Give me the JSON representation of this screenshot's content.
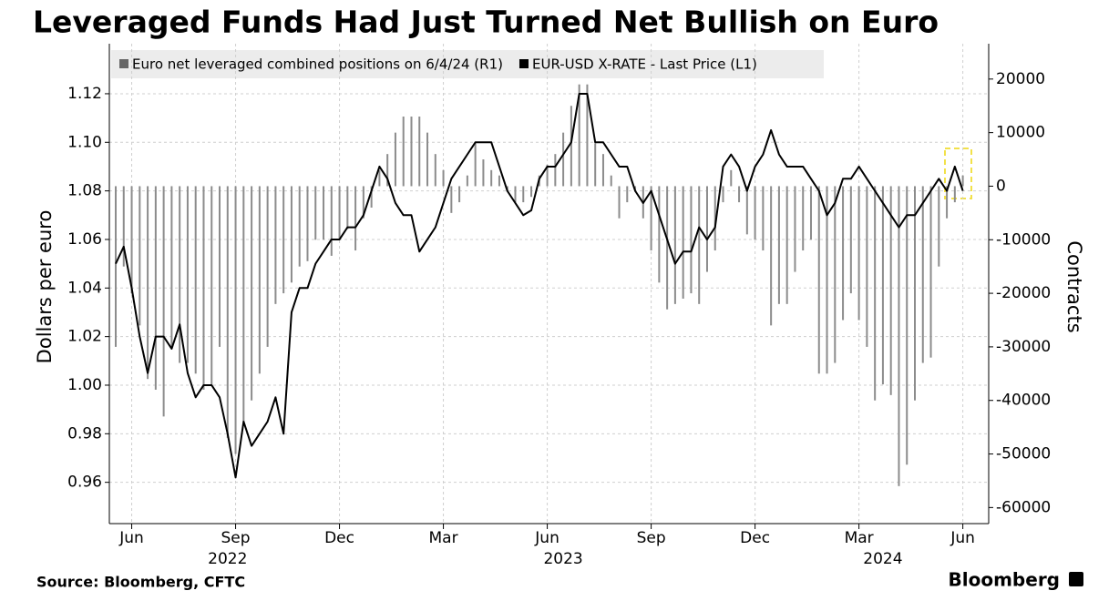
{
  "chart_data": {
    "type": "combo",
    "title": "Leveraged Funds Had Just Turned Net Bullish on Euro",
    "source": "Source: Bloomberg, CFTC",
    "logo": "Bloomberg",
    "ylabel": "Dollars per euro",
    "y2label": "Contracts",
    "categories": [
      null,
      null,
      "Jun",
      null,
      null,
      null,
      null,
      null,
      null,
      null,
      null,
      null,
      null,
      null,
      null,
      "Sep",
      null,
      null,
      null,
      null,
      null,
      null,
      null,
      null,
      null,
      null,
      null,
      null,
      "Dec",
      null,
      null,
      null,
      null,
      null,
      null,
      null,
      null,
      null,
      null,
      null,
      null,
      "Mar",
      null,
      null,
      null,
      null,
      null,
      null,
      null,
      null,
      null,
      null,
      null,
      null,
      "Jun",
      null,
      null,
      null,
      null,
      null,
      null,
      null,
      null,
      null,
      null,
      null,
      null,
      "Sep",
      null,
      null,
      null,
      null,
      null,
      null,
      null,
      null,
      null,
      null,
      null,
      null,
      "Dec",
      null,
      null,
      null,
      null,
      null,
      null,
      null,
      null,
      null,
      null,
      null,
      null,
      "Mar",
      null,
      null,
      null,
      null,
      null,
      null,
      null,
      null,
      null,
      null,
      null,
      null,
      "Jun"
    ],
    "year_ticks": [
      {
        "value": 14,
        "label": "2022"
      },
      {
        "value": 56,
        "label": "2023"
      },
      {
        "value": 96,
        "label": "2024"
      }
    ],
    "series": [
      {
        "name": "Euro net leveraged combined positions on 6/4/24 (R1)",
        "type": "bar",
        "axis": "y2",
        "color": "#8c8c8c",
        "values": [
          -30000,
          -15000,
          -20000,
          -26000,
          -36000,
          -38000,
          -43000,
          -30000,
          -33000,
          -33000,
          -35000,
          -38000,
          -37000,
          -30000,
          -47000,
          -50000,
          -44000,
          -40000,
          -35000,
          -30000,
          -22000,
          -20000,
          -18000,
          -15000,
          -14000,
          -10000,
          -10000,
          -13000,
          -10000,
          -8000,
          -12000,
          -6000,
          -4000,
          3000,
          6000,
          10000,
          13000,
          13000,
          13000,
          10000,
          6000,
          3000,
          -5000,
          -3000,
          2000,
          8000,
          5000,
          3000,
          2000,
          -1000,
          -3000,
          -3000,
          -2000,
          2000,
          4000,
          6000,
          10000,
          15000,
          19000,
          19000,
          8000,
          6000,
          2000,
          -6000,
          -3000,
          -1000,
          -6000,
          -12000,
          -18000,
          -23000,
          -22000,
          -21000,
          -20000,
          -22000,
          -16000,
          -12000,
          -3000,
          3000,
          -3000,
          -9000,
          -10000,
          -12000,
          -26000,
          -22000,
          -22000,
          -16000,
          -12000,
          -10000,
          -35000,
          -35000,
          -33000,
          -25000,
          -20000,
          -25000,
          -30000,
          -40000,
          -37000,
          -39000,
          -56000,
          -52000,
          -40000,
          -33000,
          -32000,
          -15000,
          -6000,
          -3000,
          2000
        ]
      },
      {
        "name": "EUR-USD X-RATE - Last Price (L1)",
        "type": "line",
        "color": "#000000",
        "values": [
          1.05,
          1.057,
          1.04,
          1.02,
          1.005,
          1.02,
          1.02,
          1.015,
          1.025,
          1.005,
          0.995,
          1.0,
          1.0,
          0.995,
          0.98,
          0.962,
          0.985,
          0.975,
          0.98,
          0.985,
          0.995,
          0.98,
          1.03,
          1.04,
          1.04,
          1.05,
          1.055,
          1.06,
          1.06,
          1.065,
          1.065,
          1.07,
          1.08,
          1.09,
          1.085,
          1.075,
          1.07,
          1.07,
          1.055,
          1.06,
          1.065,
          1.075,
          1.085,
          1.09,
          1.095,
          1.1,
          1.1,
          1.1,
          1.09,
          1.08,
          1.075,
          1.07,
          1.072,
          1.085,
          1.09,
          1.09,
          1.095,
          1.1,
          1.12,
          1.12,
          1.1,
          1.1,
          1.095,
          1.09,
          1.09,
          1.08,
          1.075,
          1.08,
          1.07,
          1.06,
          1.05,
          1.055,
          1.055,
          1.065,
          1.06,
          1.065,
          1.09,
          1.095,
          1.09,
          1.08,
          1.09,
          1.095,
          1.105,
          1.095,
          1.09,
          1.09,
          1.09,
          1.085,
          1.08,
          1.07,
          1.075,
          1.085,
          1.085,
          1.09,
          1.085,
          1.08,
          1.075,
          1.07,
          1.065,
          1.07,
          1.07,
          1.075,
          1.08,
          1.085,
          1.08,
          1.09,
          1.08
        ]
      }
    ],
    "ylim": [
      0.943,
      1.1406
    ],
    "yticks": [
      0.96,
      0.98,
      {
        "value": 1,
        "label": "1.00"
      },
      1.02,
      1.04,
      1.06,
      1.08,
      {
        "value": 1.1,
        "label": "1.10"
      },
      1.12
    ],
    "y2lim": [
      -63000,
      26600
    ],
    "y2ticks": [
      -60000,
      -50000,
      -40000,
      -30000,
      -20000,
      -10000,
      0,
      10000,
      20000
    ],
    "grid": true
  }
}
